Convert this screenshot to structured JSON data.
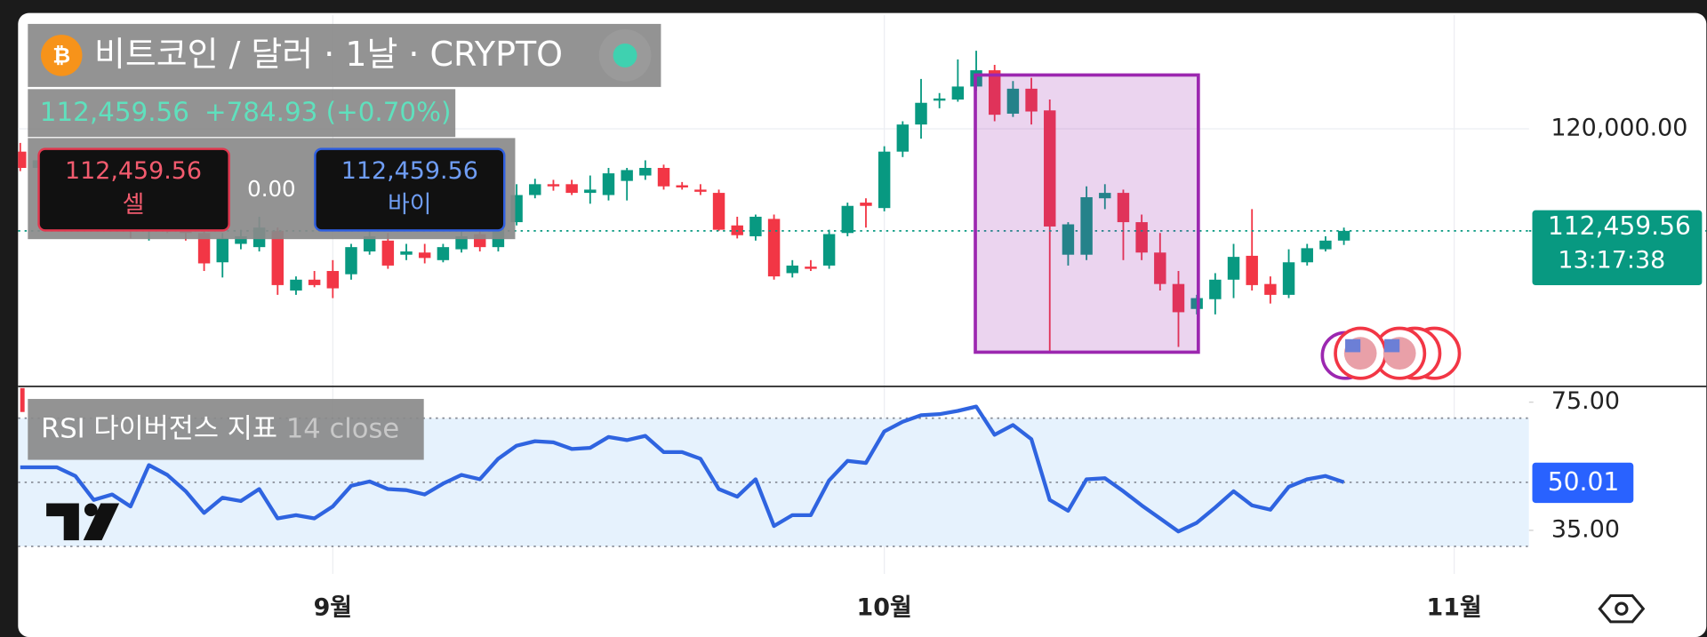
{
  "ui": {
    "price": "112,459.56",
    "change": "+784.93 (+0.70%)",
    "sell_price": "112,459.56",
    "sell_label": "셀",
    "spread": "0.00",
    "buy_price": "112,459.56",
    "buy_label": "바이",
    "price_tag": "112,459.56",
    "countdown": "13:17:38"
  },
  "chart_data": [
    {
      "type": "candlestick",
      "title": "비트코인 / 달러 · 1날 · CRYPTO",
      "open": [
        118316,
        117113,
        117674,
        116712,
        115509,
        116070,
        113905,
        112461,
        113103,
        112702,
        112301,
        110136,
        111499,
        111258,
        112461,
        108050,
        108852,
        109494,
        109253,
        110938,
        111740,
        110697,
        110857,
        110296,
        111098,
        112221,
        111258,
        113103,
        115108,
        115910,
        115910,
        115268,
        115108,
        116151,
        116552,
        117113,
        115830,
        115509,
        115268,
        112862,
        112060,
        113344,
        109334,
        109815,
        109895,
        112301,
        114547,
        114146,
        118316,
        120321,
        122085,
        122166,
        123128,
        124331,
        121123,
        122968,
        121364,
        110697,
        110697,
        114867,
        115268,
        113103,
        110857,
        108532,
        106687,
        107409,
        108852,
        110617,
        108532,
        107730,
        110136,
        111098,
        111740
      ],
      "high": [
        118958,
        117915,
        118316,
        117113,
        116311,
        116712,
        114306,
        113504,
        113664,
        113504,
        112862,
        112301,
        112542,
        113504,
        112702,
        109093,
        109494,
        110296,
        111499,
        112542,
        112301,
        111499,
        111499,
        111499,
        112702,
        113103,
        113905,
        115910,
        116311,
        116231,
        116231,
        116552,
        117113,
        117113,
        117674,
        117354,
        116070,
        115910,
        115509,
        113504,
        113664,
        113664,
        110296,
        110296,
        112542,
        114547,
        114867,
        118717,
        120562,
        123689,
        122647,
        125133,
        125775,
        124732,
        123529,
        123770,
        122166,
        113103,
        115750,
        115910,
        115509,
        113664,
        112301,
        109494,
        107730,
        109334,
        111499,
        114065,
        109093,
        111098,
        111499,
        112060,
        112702
      ],
      "low": [
        116872,
        116712,
        116311,
        115108,
        114707,
        113504,
        111900,
        111740,
        112301,
        111740,
        109494,
        109013,
        111098,
        110938,
        107730,
        107730,
        108291,
        107489,
        108852,
        110697,
        109654,
        110296,
        110055,
        110136,
        110857,
        110938,
        110938,
        112862,
        114867,
        115429,
        115108,
        114466,
        114707,
        114707,
        116231,
        115509,
        115509,
        115108,
        112461,
        111900,
        111740,
        108852,
        109013,
        109494,
        109654,
        112060,
        112702,
        113905,
        117915,
        119278,
        121524,
        122005,
        122807,
        120562,
        120882,
        120321,
        103479,
        109895,
        110296,
        114065,
        110296,
        110296,
        108050,
        103880,
        106286,
        106286,
        107489,
        108050,
        107088,
        107489,
        109895,
        110938,
        111419
      ],
      "close": [
        117113,
        117674,
        116712,
        115509,
        116070,
        113905,
        112461,
        113103,
        112702,
        112301,
        110055,
        111900,
        112060,
        112702,
        108451,
        108852,
        108451,
        108211,
        111258,
        112060,
        109895,
        110938,
        110456,
        111258,
        112060,
        111258,
        113103,
        115108,
        115910,
        115750,
        115268,
        115509,
        116712,
        116953,
        117113,
        115750,
        115669,
        115349,
        112542,
        112141,
        113504,
        109093,
        109895,
        109654,
        112221,
        114306,
        114306,
        118316,
        120321,
        121925,
        122246,
        123128,
        124331,
        121043,
        122968,
        121283,
        112782,
        112943,
        114948,
        115268,
        113103,
        110857,
        108532,
        106446,
        107489,
        108852,
        110537,
        108451,
        107730,
        110136,
        111178,
        111740,
        112459.56
      ],
      "up_color": "#089981",
      "down_color": "#f23645",
      "ylim": [
        101000,
        128400
      ],
      "yticks": [
        {
          "value": 120000,
          "label": "120,000.00"
        }
      ],
      "xlim": [
        -0.12,
        82.07
      ],
      "xticks": [
        {
          "value": 17,
          "label": "9월"
        },
        {
          "value": 47,
          "label": "10월"
        },
        {
          "value": 78,
          "label": "11월"
        }
      ],
      "grid": true
    },
    {
      "type": "line",
      "title": "RSI 다이버전스 지표",
      "subtitle": "14 close",
      "color": "#2f64e0",
      "values": [
        54.66,
        54.66,
        54.66,
        51.95,
        44.49,
        46.19,
        42.46,
        55.34,
        52.29,
        47.2,
        40.42,
        45.17,
        44.15,
        47.88,
        38.73,
        39.75,
        38.73,
        42.46,
        48.9,
        50.25,
        47.88,
        47.54,
        46.19,
        49.58,
        52.29,
        50.93,
        57.37,
        61.44,
        62.8,
        62.46,
        60.42,
        60.76,
        64.15,
        63.14,
        64.49,
        59.41,
        59.41,
        57.37,
        47.88,
        45.51,
        50.93,
        36.36,
        39.75,
        39.75,
        50.59,
        56.69,
        56.02,
        65.85,
        68.9,
        70.93,
        71.27,
        72.29,
        73.64,
        64.83,
        67.88,
        63.47,
        44.49,
        41.1,
        50.93,
        51.27,
        47.2,
        42.8,
        38.73,
        34.66,
        37.37,
        42.12,
        47.2,
        42.8,
        41.44,
        48.56,
        50.93,
        51.95,
        50.01
      ],
      "ylim": [
        21.4,
        79.4
      ],
      "yticks": [
        {
          "value": 75,
          "label": "75.00"
        },
        {
          "value": 35,
          "label": "35.00"
        }
      ],
      "levels": [
        70,
        50,
        30
      ],
      "band_color": "#e6f2fd"
    }
  ]
}
